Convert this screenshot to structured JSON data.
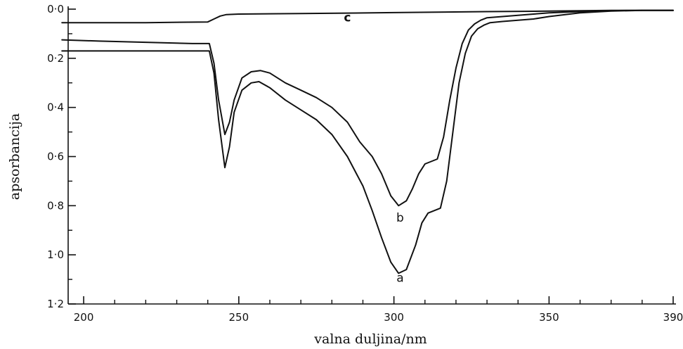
{
  "chart_data": {
    "type": "line",
    "xlabel": "valna duljina/nm",
    "ylabel": "apsorbancija",
    "xlim": [
      195,
      390
    ],
    "ylim": [
      0.0,
      1.2
    ],
    "y_inverted": true,
    "grid": false,
    "legend": "none",
    "x_ticks": [
      {
        "value": 200,
        "label": "200"
      },
      {
        "value": 250,
        "label": "250"
      },
      {
        "value": 300,
        "label": "300"
      },
      {
        "value": 350,
        "label": "350"
      },
      {
        "value": 390,
        "label": "390"
      }
    ],
    "y_ticks": [
      {
        "value": 0.0,
        "label": "0·0"
      },
      {
        "value": 0.2,
        "label": "0·2"
      },
      {
        "value": 0.4,
        "label": "0·4"
      },
      {
        "value": 0.6,
        "label": "0·6"
      },
      {
        "value": 0.8,
        "label": "0·8"
      },
      {
        "value": 1.0,
        "label": "1·0"
      },
      {
        "value": 1.2,
        "label": "1·2"
      }
    ],
    "series": [
      {
        "name": "a",
        "x": [
          193,
          205,
          220,
          235,
          240.5,
          242,
          243.5,
          245.5,
          247,
          248.5,
          251,
          254,
          256.5,
          260,
          265,
          270,
          275,
          280,
          285,
          290,
          293,
          296,
          299,
          301.5,
          304,
          307,
          309,
          311,
          313,
          315,
          317,
          319,
          321,
          323,
          325,
          327,
          329,
          331,
          335,
          340,
          345,
          350,
          360,
          370,
          380,
          390
        ],
        "y": [
          0.17,
          0.17,
          0.17,
          0.17,
          0.17,
          0.26,
          0.45,
          0.645,
          0.56,
          0.42,
          0.33,
          0.3,
          0.295,
          0.32,
          0.37,
          0.41,
          0.45,
          0.51,
          0.6,
          0.72,
          0.82,
          0.93,
          1.03,
          1.075,
          1.06,
          0.96,
          0.87,
          0.83,
          0.82,
          0.81,
          0.7,
          0.5,
          0.3,
          0.18,
          0.11,
          0.08,
          0.065,
          0.055,
          0.05,
          0.045,
          0.04,
          0.03,
          0.015,
          0.008,
          0.005,
          0.005
        ]
      },
      {
        "name": "b",
        "x": [
          193,
          205,
          220,
          235,
          240.5,
          242,
          243.5,
          245.5,
          247,
          248.5,
          251,
          254,
          257,
          260,
          265,
          270,
          275,
          280,
          285,
          289,
          293,
          296,
          299,
          301.5,
          304,
          306,
          308,
          310,
          312,
          314,
          316,
          318,
          320,
          322,
          324,
          326,
          328,
          330,
          335,
          340,
          345,
          350,
          360,
          370,
          380,
          390
        ],
        "y": [
          0.125,
          0.13,
          0.135,
          0.14,
          0.14,
          0.22,
          0.37,
          0.51,
          0.46,
          0.37,
          0.28,
          0.255,
          0.25,
          0.26,
          0.3,
          0.33,
          0.36,
          0.4,
          0.46,
          0.54,
          0.6,
          0.67,
          0.76,
          0.8,
          0.78,
          0.73,
          0.67,
          0.63,
          0.62,
          0.61,
          0.52,
          0.37,
          0.24,
          0.14,
          0.085,
          0.06,
          0.045,
          0.035,
          0.03,
          0.025,
          0.02,
          0.015,
          0.01,
          0.006,
          0.005,
          0.005
        ]
      },
      {
        "name": "c",
        "x": [
          193,
          200,
          220,
          240,
          242,
          244,
          246,
          250,
          270,
          300,
          330,
          350,
          370,
          390
        ],
        "y": [
          0.055,
          0.055,
          0.055,
          0.052,
          0.04,
          0.028,
          0.022,
          0.02,
          0.018,
          0.014,
          0.01,
          0.008,
          0.005,
          0.005
        ]
      }
    ],
    "annotations": [
      {
        "text": "a",
        "x": 302,
        "y": 1.11,
        "bold": false
      },
      {
        "text": "b",
        "x": 302,
        "y": 0.865,
        "bold": false
      },
      {
        "text": "c",
        "x": 285,
        "y": 0.05,
        "bold": true
      }
    ]
  }
}
